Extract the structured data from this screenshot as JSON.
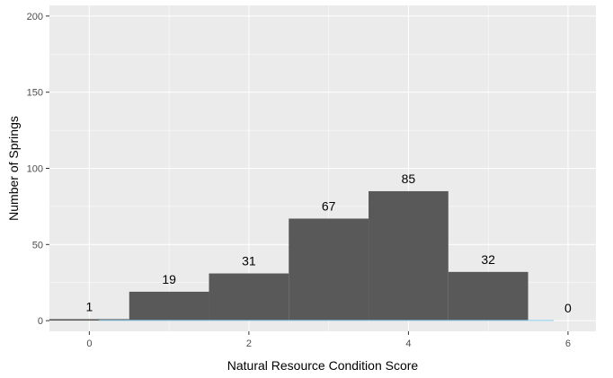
{
  "chart_data": {
    "type": "bar",
    "title": "",
    "xlabel": "Natural Resource Condition Score",
    "ylabel": "Number of Springs",
    "x": [
      0,
      1,
      2,
      3,
      4,
      5,
      6
    ],
    "values": [
      1,
      19,
      31,
      67,
      85,
      32,
      0
    ],
    "data_labels": [
      "1",
      "19",
      "31",
      "67",
      "85",
      "32",
      "0"
    ],
    "xlim": [
      -0.5,
      6.35
    ],
    "ylim": [
      -7,
      207
    ],
    "x_ticks": [
      0,
      2,
      4,
      6
    ],
    "x_tick_labels": [
      "0",
      "2",
      "4",
      "6"
    ],
    "y_ticks": [
      0,
      50,
      100,
      150,
      200
    ],
    "y_tick_labels": [
      "0",
      "50",
      "100",
      "150",
      "200"
    ],
    "grid": true,
    "legend": "none",
    "colors": {
      "bar": "#595959",
      "panel": "#ebebeb",
      "grid_major": "#ffffff",
      "density_line": "#87ceeb"
    }
  }
}
